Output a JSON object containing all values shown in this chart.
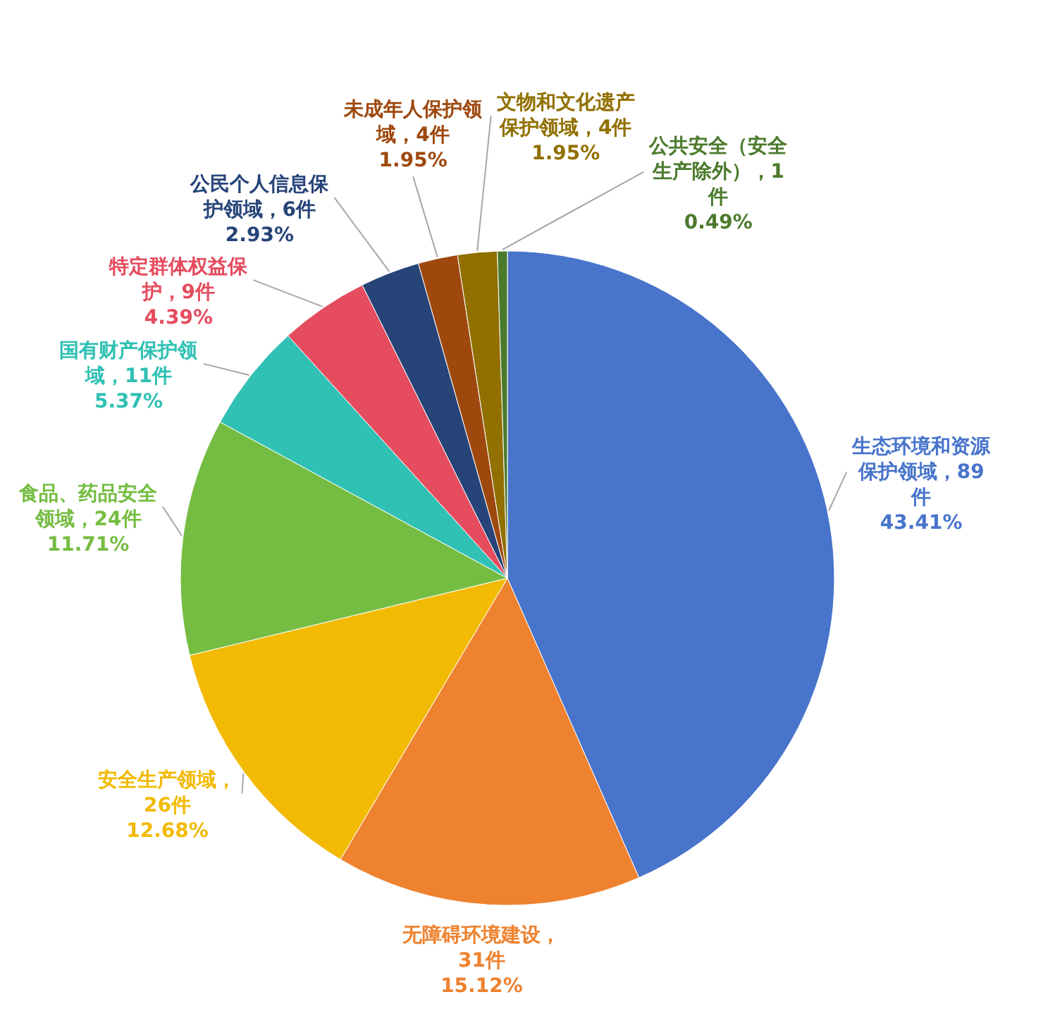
{
  "chart_data": {
    "type": "pie",
    "categories": [
      "生态环境和资源保护领域，89件",
      "无障碍环境建设，31件",
      "安全生产领域，26件",
      "食品、药品安全领域，24件",
      "国有财产保护领域，11件",
      "特定群体权益保护，9件",
      "公民个人信息保护领域，6件",
      "未成年人保护领域，4件",
      "文物和文化遗产保护领域，4件",
      "公共安全（安全生产除外），1件"
    ],
    "values": [
      43.41,
      15.12,
      12.68,
      11.71,
      5.37,
      4.39,
      2.93,
      1.95,
      1.95,
      0.49
    ],
    "colors": [
      "#4874cb",
      "#ee822f",
      "#f2ba02",
      "#75bd42",
      "#30c0b4",
      "#e54c5e",
      "#264478",
      "#9e480e",
      "#917000",
      "#4b7a2c"
    ],
    "value_labels": [
      "43.41%",
      "15.12%",
      "12.68%",
      "11.71%",
      "5.37%",
      "4.39%",
      "2.93%",
      "1.95%",
      "1.95%",
      "0.49%"
    ]
  }
}
